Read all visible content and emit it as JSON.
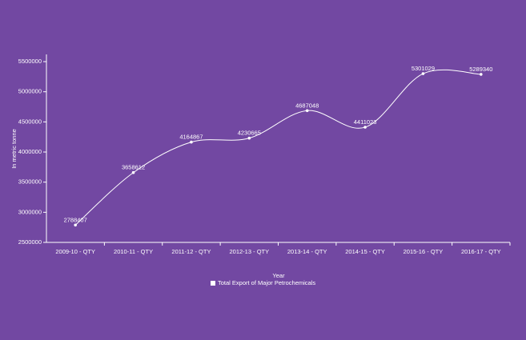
{
  "chart_data": {
    "type": "line",
    "categories": [
      "2009-10 - QTY",
      "2010-11 - QTY",
      "2011-12 - QTY",
      "2012-13 - QTY",
      "2013-14 - QTY",
      "2014-15 - QTY",
      "2015-16 - QTY",
      "2016-17 - QTY"
    ],
    "series": [
      {
        "name": "Total Export of Major Petrochemicals",
        "color": "#ffffff",
        "values": [
          2788407,
          3658612,
          4164867,
          4230665,
          4687048,
          4411023,
          5301029,
          5289340
        ]
      }
    ],
    "ylim": [
      2500000,
      5620000
    ],
    "yticks": [
      2500000,
      3000000,
      3500000,
      4000000,
      4500000,
      5000000,
      5500000
    ],
    "xlabel": "Year",
    "ylabel": "In metric tonne"
  }
}
